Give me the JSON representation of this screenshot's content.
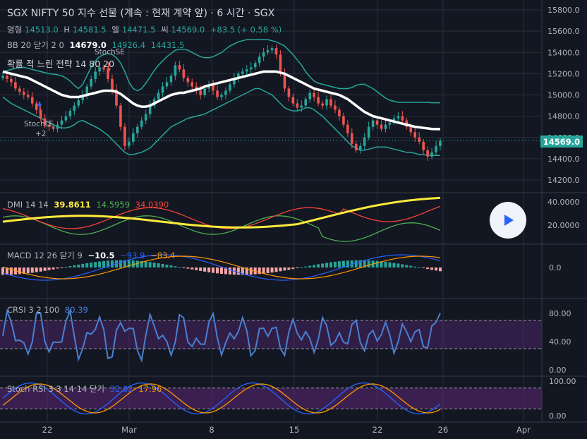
{
  "header": {
    "title": "SGX NIFTY 50 지수 선물 (계속 : 현재 계약 앞) · 6 시간 · SGX",
    "ohlc": {
      "o_label": "영형",
      "o": "14513.0",
      "h_label": "H",
      "h": "14581.5",
      "l_label": "엘",
      "l": "14471.5",
      "c_label": "씨",
      "c": "14569.0",
      "change": "+83.5 (+ 0.58 %)"
    },
    "bb": {
      "label": "BB 20 닫기 2 0",
      "basis": "14679.0",
      "upper": "14926.4",
      "lower": "14431.5"
    },
    "strategy": "확률 적 느린 전략 14 80 20"
  },
  "annotations": {
    "stoch_se": "StochSE",
    "stoch_le": "StochLE",
    "stoch_le_count": "+2"
  },
  "price_badge": "14569.0",
  "colors": {
    "bg": "#131722",
    "up": "#26a69a",
    "down": "#ef5350",
    "grid": "#2a2e39",
    "bb": "#26a69a",
    "basis": "#ffffff",
    "adx": "#ffeb3b",
    "di_plus": "#4caf50",
    "di_minus": "#f44336",
    "macd": "#2962ff",
    "signal": "#ff9800",
    "crsi": "#4a7fd0",
    "band": "#6a2a8a"
  },
  "x_labels": [
    "22",
    "Mar",
    "8",
    "15",
    "22",
    "26",
    "Apr"
  ],
  "panes": {
    "dmi": {
      "label": "DMI 14 14",
      "adx": "39.8611",
      "di_plus": "14.5959",
      "di_minus": "34.0390",
      "ticks": [
        "40.0000",
        "20.0000"
      ]
    },
    "macd": {
      "label": "MACD 12 26 닫기 9",
      "hist": "−10.5",
      "macd": "−93.9",
      "signal": "−83.4",
      "ticks": [
        "0.0"
      ]
    },
    "crsi": {
      "label": "CRSI 3 2 100",
      "value": "80.39",
      "ticks": [
        "80.00",
        "40.00",
        "0.00"
      ]
    },
    "stoch_rsi": {
      "label": "Stoch RSI 3 3 14 14 닫기",
      "k": "32.02",
      "d": "17.96",
      "ticks": [
        "100.00",
        "0.00"
      ]
    }
  },
  "chart_data": {
    "type": "candlestick",
    "price_ticks": [
      "15800.0",
      "15600.0",
      "15400.0",
      "15200.0",
      "15000.0",
      "14800.0",
      "14600.0",
      "14400.0",
      "14200.0"
    ],
    "ylim": [
      14120,
      15840
    ],
    "close_series": [
      15180,
      15150,
      15120,
      15060,
      15030,
      15000,
      14980,
      14920,
      14860,
      14780,
      14720,
      14700,
      14680,
      14720,
      14760,
      14800,
      14850,
      14900,
      14950,
      15000,
      15080,
      15150,
      15220,
      15260,
      15240,
      15150,
      15050,
      14900,
      14700,
      14520,
      14560,
      14640,
      14700,
      14760,
      14820,
      14900,
      14960,
      15020,
      15080,
      15120,
      15180,
      15280,
      15240,
      15160,
      15120,
      15080,
      15040,
      15000,
      15060,
      15100,
      15040,
      14980,
      15000,
      15040,
      15100,
      15160,
      15200,
      15220,
      15240,
      15260,
      15300,
      15360,
      15400,
      15420,
      15440,
      15380,
      15200,
      15060,
      14980,
      14920,
      14880,
      14900,
      14960,
      15020,
      14980,
      14920,
      14900,
      14960,
      14900,
      14860,
      14800,
      14720,
      14640,
      14540,
      14480,
      14520,
      14600,
      14700,
      14760,
      14720,
      14680,
      14720,
      14740,
      14780,
      14800,
      14760,
      14700,
      14650,
      14600,
      14560,
      14480,
      14420,
      14460,
      14520,
      14569
    ],
    "bb_upper": [
      15220,
      15230,
      15240,
      15250,
      15255,
      15260,
      15250,
      15240,
      15230,
      15220,
      15210,
      15200,
      15195,
      15190,
      15180,
      15160,
      15130,
      15090,
      15060,
      15100,
      15180,
      15260,
      15320,
      15360,
      15380,
      15390,
      15380,
      15350,
      15300,
      15220,
      15120,
      15060,
      15040,
      15060,
      15110,
      15170,
      15230,
      15280,
      15320,
      15360,
      15390,
      15420,
      15430,
      15430,
      15420,
      15400,
      15380,
      15360,
      15350,
      15350,
      15360,
      15380,
      15400,
      15430,
      15460,
      15480,
      15500,
      15510,
      15520,
      15520,
      15520,
      15520,
      15520,
      15520,
      15510,
      15500,
      15480,
      15460,
      15420,
      15380,
      15330,
      15280,
      15220,
      15170,
      15130,
      15110,
      15100,
      15090,
      15080,
      15070,
      15060,
      15060,
      15060,
      15070,
      15090,
      15100,
      15100,
      15080,
      15060,
      15030,
      15000,
      14970,
      14950,
      14940,
      14930,
      14930,
      14930,
      14930,
      14930,
      14930,
      14930,
      14930,
      14926,
      14926,
      14926
    ],
    "bb_basis": [
      15220,
      15210,
      15200,
      15190,
      15180,
      15170,
      15160,
      15140,
      15120,
      15100,
      15080,
      15060,
      15040,
      15020,
      15000,
      14990,
      14980,
      14980,
      14980,
      14990,
      15000,
      15010,
      15020,
      15030,
      15040,
      15040,
      15040,
      15030,
      15010,
      14980,
      14950,
      14920,
      14900,
      14890,
      14890,
      14900,
      14920,
      14940,
      14960,
      14980,
      15000,
      15010,
      15020,
      15020,
      15030,
      15040,
      15050,
      15060,
      15080,
      15090,
      15100,
      15110,
      15120,
      15130,
      15140,
      15150,
      15160,
      15170,
      15180,
      15190,
      15200,
      15210,
      15220,
      15220,
      15220,
      15220,
      15210,
      15200,
      15180,
      15160,
      15140,
      15120,
      15100,
      15080,
      15060,
      15050,
      15040,
      15030,
      15020,
      15010,
      15000,
      14980,
      14960,
      14930,
      14900,
      14870,
      14840,
      14820,
      14800,
      14790,
      14780,
      14770,
      14760,
      14750,
      14740,
      14730,
      14720,
      14710,
      14700,
      14695,
      14690,
      14685,
      14680,
      14679,
      14679
    ],
    "bb_lower": [
      14980,
      14950,
      14920,
      14900,
      14880,
      14860,
      14840,
      14820,
      14800,
      14780,
      14760,
      14740,
      14720,
      14700,
      14690,
      14690,
      14700,
      14720,
      14750,
      14760,
      14740,
      14720,
      14700,
      14680,
      14650,
      14620,
      14580,
      14540,
      14500,
      14460,
      14440,
      14440,
      14450,
      14460,
      14480,
      14500,
      14540,
      14580,
      14620,
      14660,
      14700,
      14720,
      14740,
      14760,
      14780,
      14790,
      14800,
      14810,
      14820,
      14840,
      14860,
      14880,
      14900,
      14920,
      14940,
      14960,
      14980,
      15000,
      15020,
      15040,
      15060,
      15060,
      15040,
      15020,
      15000,
      14960,
      14920,
      14880,
      14860,
      14850,
      14850,
      14860,
      14880,
      14880,
      14860,
      14830,
      14800,
      14760,
      14720,
      14680,
      14640,
      14600,
      14560,
      14520,
      14500,
      14480,
      14480,
      14490,
      14500,
      14510,
      14510,
      14510,
      14500,
      14490,
      14480,
      14470,
      14460,
      14460,
      14450,
      14440,
      14440,
      14430,
      14432,
      14431,
      14431
    ]
  }
}
